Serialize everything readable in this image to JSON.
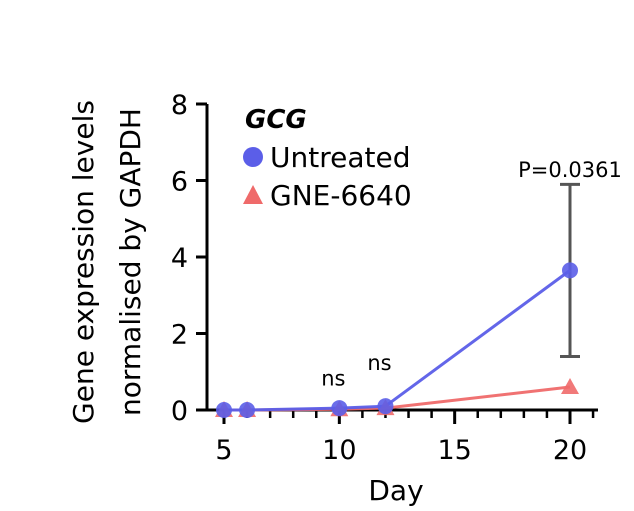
{
  "chart_data": {
    "type": "line",
    "title": "GCG",
    "xlabel": "Day",
    "ylabel_lines": [
      "Gene expression levels",
      "normalised by GAPDH"
    ],
    "xlim": [
      5,
      21
    ],
    "ylim": [
      0,
      8
    ],
    "x_ticks": [
      5,
      10,
      15,
      20
    ],
    "y_ticks": [
      0,
      2,
      4,
      6,
      8
    ],
    "x_minor_ticks": [
      6,
      7,
      8,
      9,
      11,
      12,
      13,
      14,
      16,
      17,
      18,
      19,
      21
    ],
    "series": [
      {
        "name": "Untreated",
        "color": "#5b5ee8",
        "marker": "circle",
        "x": [
          5,
          6,
          10,
          12,
          20
        ],
        "values": [
          0,
          0,
          0.05,
          0.1,
          3.65
        ],
        "error": [
          null,
          null,
          null,
          null,
          [
            1.4,
            5.9
          ]
        ]
      },
      {
        "name": "GNE-6640",
        "color": "#ef6a6a",
        "marker": "triangle",
        "x": [
          5,
          6,
          10,
          12,
          20
        ],
        "values": [
          0,
          0,
          0.02,
          0.05,
          0.6
        ]
      }
    ],
    "annotations": [
      {
        "text": "ns",
        "x": 10,
        "y": 0.85
      },
      {
        "text": "ns",
        "x": 12,
        "y": 1.25
      },
      {
        "text": "P=0.0361",
        "x": 20,
        "y": 6.3
      }
    ],
    "legend": "top-left"
  }
}
